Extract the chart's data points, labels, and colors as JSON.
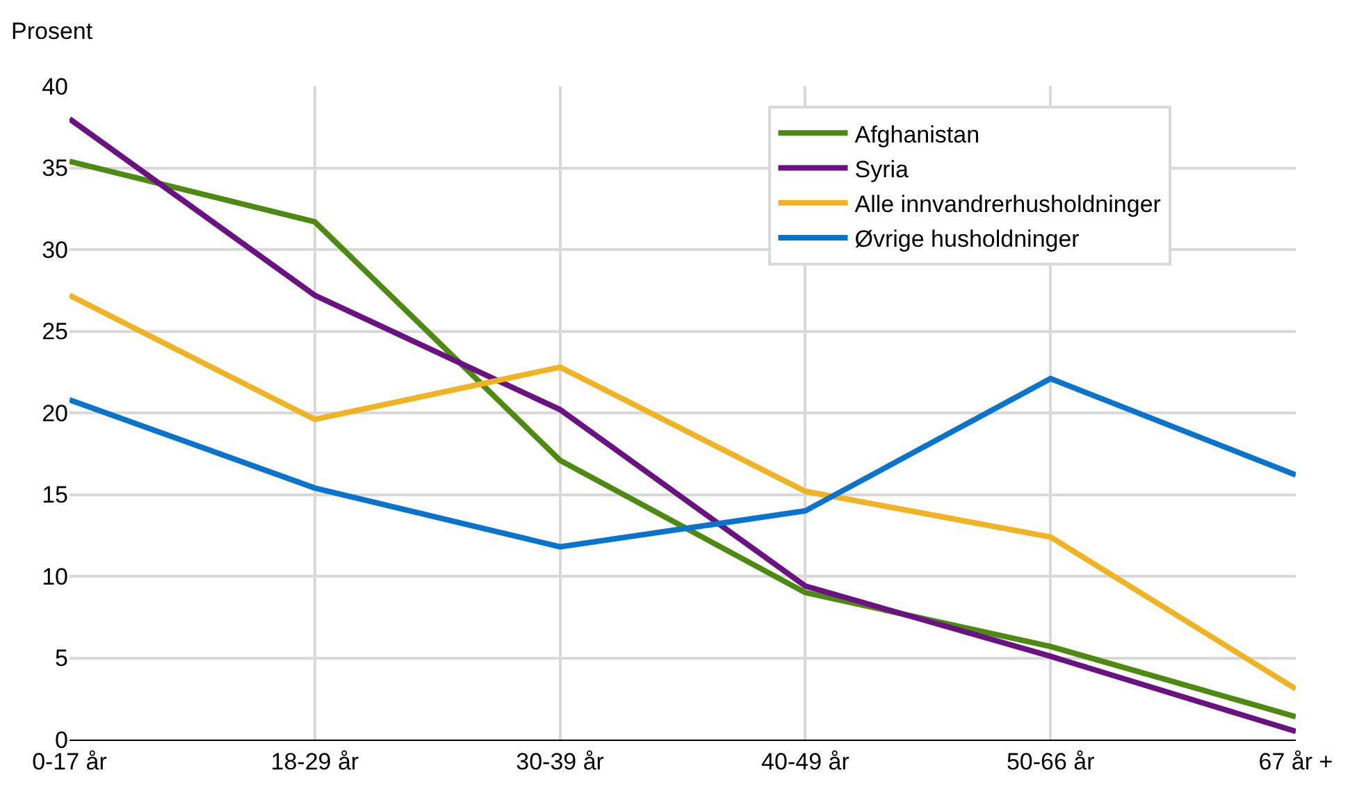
{
  "chart_data": {
    "type": "line",
    "ylabel": "Prosent",
    "categories": [
      "0-17 år",
      "18-29 år",
      "30-39 år",
      "40-49 år",
      "50-66 år",
      "67 år +"
    ],
    "series": [
      {
        "name": "Afghanistan",
        "color": "#4e8a12",
        "values": [
          35.4,
          31.7,
          17.1,
          9.0,
          5.7,
          1.4
        ]
      },
      {
        "name": "Syria",
        "color": "#6a1282",
        "values": [
          38.0,
          27.2,
          20.2,
          9.4,
          5.1,
          0.5
        ]
      },
      {
        "name": "Alle innvandrerhusholdninger",
        "color": "#f0b323",
        "values": [
          27.2,
          19.6,
          22.8,
          15.2,
          12.4,
          3.1
        ]
      },
      {
        "name": "Øvrige husholdninger",
        "color": "#0a74cc",
        "values": [
          20.8,
          15.4,
          11.8,
          14.0,
          22.1,
          16.2
        ]
      }
    ],
    "ylim": [
      0,
      40
    ],
    "yticks": [
      0,
      5,
      10,
      15,
      20,
      25,
      30,
      35,
      40
    ],
    "grid": true,
    "legend": "top right",
    "line_style": "solid",
    "marker": "none"
  }
}
